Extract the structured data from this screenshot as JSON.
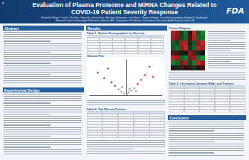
{
  "header": {
    "poster_number": "2",
    "title_lines": [
      "Evaluation of Plasma Proteome and MiRNA Changes Related to",
      "COVID-19 Patient Severity Response"
    ],
    "authors": "Richard D. Beger¹*, Lei Xu¹, Tao Ren¹, Vinay Vij¹, Jinchun Sun¹, Bhaskara Srinivasan¹, Lisa Pence¹, Thomas Schmitt¹, Laura Schnackenberg¹, Heather S. Smallwood²",
    "affiliation": "¹ National Center for Toxicological Research, Jefferson, AR; ² Department of Pediatrics, University of Tennessee Health Science Center, TN",
    "logo": "FDA"
  },
  "sections": {
    "abstract": "Abstract",
    "design": "Experimental Design",
    "results": "Results",
    "conclusion": "Conclusion"
  },
  "captions": {
    "table1": "Table 1: Patient Demographics by Severity",
    "volcano": "Volcano Plot",
    "table2": "Table 2: Top Plasma Proteins",
    "cluster": "Cluster Diagram",
    "table3": "Table 3: Correlation between RNAs and Proteins"
  },
  "chart_data": {
    "type": "scatter",
    "title": "Volcano Plot",
    "x": [
      -3.1,
      -2.4,
      -2.0,
      -1.6,
      -1.2,
      -0.8,
      -0.5,
      -0.2,
      0.1,
      0.3,
      0.6,
      0.9,
      1.3,
      1.7,
      2.1,
      2.6,
      3.0,
      -0.4,
      0.4,
      1.1
    ],
    "values": [
      3.8,
      2.9,
      4.5,
      2.2,
      1.6,
      1.0,
      0.6,
      0.3,
      0.2,
      0.5,
      0.8,
      1.2,
      1.9,
      2.6,
      3.4,
      4.8,
      3.1,
      1.4,
      1.1,
      0.7
    ],
    "colors": [
      "#2f5fd0",
      "#2f5fd0",
      "#2f5fd0",
      "#2f5fd0",
      "#2f5fd0",
      "#9a9a9a",
      "#9a9a9a",
      "#9a9a9a",
      "#9a9a9a",
      "#9a9a9a",
      "#9a9a9a",
      "#9a9a9a",
      "#d83a2e",
      "#d83a2e",
      "#d83a2e",
      "#d83a2e",
      "#d83a2e",
      "#9a9a9a",
      "#9a9a9a",
      "#9a9a9a"
    ],
    "xlim": [
      -4,
      4
    ],
    "ylim": [
      0,
      6
    ],
    "tick_labels": false,
    "grid": false
  },
  "cluster": {
    "low_color": "#1a9a3a",
    "mid_color": "#111111",
    "high_color": "#d8262a",
    "cells": [
      [
        0.8,
        0.6,
        -0.3,
        -0.7,
        0.2,
        0.9,
        -0.5,
        -0.8
      ],
      [
        0.7,
        0.5,
        -0.4,
        -0.6,
        0.3,
        0.8,
        -0.6,
        -0.7
      ],
      [
        -0.6,
        -0.4,
        0.7,
        0.8,
        -0.2,
        -0.5,
        0.6,
        0.9
      ],
      [
        -0.5,
        -0.7,
        0.6,
        0.9,
        -0.3,
        -0.6,
        0.8,
        0.7
      ],
      [
        0.3,
        0.2,
        -0.1,
        0.1,
        0.6,
        0.4,
        -0.2,
        0.0
      ],
      [
        0.9,
        0.7,
        -0.6,
        -0.8,
        0.5,
        0.7,
        -0.7,
        -0.9
      ],
      [
        -0.8,
        -0.6,
        0.5,
        0.7,
        -0.4,
        -0.8,
        0.9,
        0.6
      ],
      [
        0.1,
        -0.2,
        0.3,
        -0.1,
        0.2,
        -0.3,
        0.1,
        0.2
      ]
    ]
  }
}
